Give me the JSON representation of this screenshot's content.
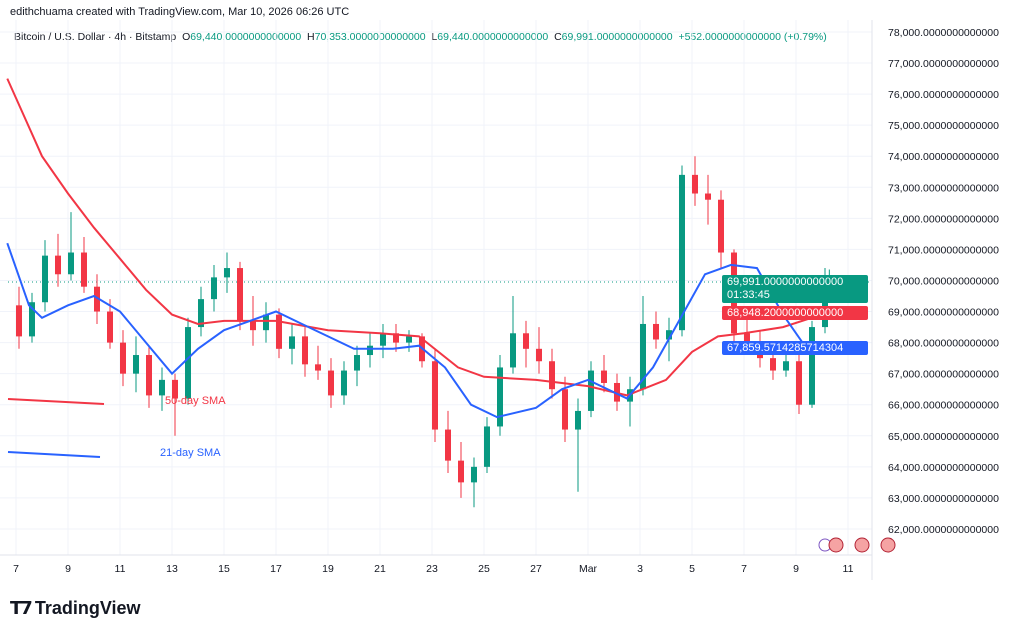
{
  "header": {
    "credit": "edithchuama created with TradingView.com, Mar 10, 2026 06:26 UTC",
    "symbol": "Bitcoin / U.S. Dollar · 4h · Bitstamp",
    "o_label": "O",
    "o": "69,440.0000000000000",
    "h_label": "H",
    "h": "70,353.0000000000000",
    "l_label": "L",
    "l": "69,440.0000000000000",
    "c_label": "C",
    "c": "69,991.0000000000000",
    "change": "+552.0000000000000 (+0.79%)"
  },
  "tags": {
    "last": "69,991.0000000000000",
    "countdown": "01:33:45",
    "sma50": "68,948.2000000000000",
    "sma21": "67,859.5714285714304"
  },
  "logo": {
    "text": "TradingView"
  },
  "colors": {
    "up": "#089981",
    "down": "#f23645",
    "sma50": "#f23645",
    "sma21": "#2962ff"
  },
  "chart_data": {
    "type": "candlestick",
    "ylim": [
      61500,
      78300
    ],
    "yticks": [
      "62,000.0000000000000",
      "63,000.0000000000000",
      "64,000.0000000000000",
      "65,000.0000000000000",
      "66,000.0000000000000",
      "67,000.0000000000000",
      "68,000.0000000000000",
      "69,000.0000000000000",
      "70,000.0000000000000",
      "71,000.0000000000000",
      "72,000.0000000000000",
      "73,000.0000000000000",
      "74,000.0000000000000",
      "75,000.0000000000000",
      "76,000.0000000000000",
      "77,000.0000000000000",
      "78,000.0000000000000"
    ],
    "xticks": [
      "7",
      "9",
      "11",
      "13",
      "15",
      "17",
      "19",
      "21",
      "23",
      "25",
      "27",
      "Mar",
      "3",
      "5",
      "7",
      "9",
      "11"
    ],
    "legend": [
      {
        "name": "50-day SMA",
        "color": "#f23645"
      },
      {
        "name": "21-day SMA",
        "color": "#2962ff"
      }
    ],
    "candles": [
      [
        "02-07 00",
        69200,
        69800,
        67800,
        68200
      ],
      [
        "02-07 12",
        68200,
        69600,
        68000,
        69300
      ],
      [
        "02-08 00",
        69300,
        71300,
        69000,
        70800
      ],
      [
        "02-08 12",
        70800,
        71500,
        69800,
        70200
      ],
      [
        "02-09 00",
        70200,
        72200,
        70000,
        70900
      ],
      [
        "02-09 12",
        70900,
        71400,
        69600,
        69800
      ],
      [
        "02-10 00",
        69800,
        70200,
        68600,
        69000
      ],
      [
        "02-10 12",
        69000,
        69400,
        67800,
        68000
      ],
      [
        "02-11 00",
        68000,
        68400,
        66600,
        67000
      ],
      [
        "02-11 12",
        67000,
        68200,
        66400,
        67600
      ],
      [
        "02-12 00",
        67600,
        67900,
        65900,
        66300
      ],
      [
        "02-12 12",
        66300,
        67200,
        65800,
        66800
      ],
      [
        "02-13 00",
        66800,
        67000,
        65000,
        66200
      ],
      [
        "02-13 12",
        66200,
        68800,
        66000,
        68500
      ],
      [
        "02-14 00",
        68500,
        69800,
        68200,
        69400
      ],
      [
        "02-14 12",
        69400,
        70500,
        69000,
        70100
      ],
      [
        "02-15 00",
        70100,
        70900,
        69600,
        70400
      ],
      [
        "02-15 12",
        70400,
        70600,
        68400,
        68700
      ],
      [
        "02-16 00",
        68700,
        69500,
        67900,
        68400
      ],
      [
        "02-16 12",
        68400,
        69300,
        68000,
        68900
      ],
      [
        "02-17 00",
        68900,
        69100,
        67500,
        67800
      ],
      [
        "02-17 12",
        67800,
        68600,
        67300,
        68200
      ],
      [
        "02-18 00",
        68200,
        68500,
        66900,
        67300
      ],
      [
        "02-18 12",
        67300,
        67900,
        66800,
        67100
      ],
      [
        "02-19 00",
        67100,
        67500,
        65900,
        66300
      ],
      [
        "02-19 12",
        66300,
        67400,
        66000,
        67100
      ],
      [
        "02-20 00",
        67100,
        67900,
        66600,
        67600
      ],
      [
        "02-20 12",
        67600,
        68300,
        67200,
        67900
      ],
      [
        "02-21 00",
        67900,
        68600,
        67500,
        68300
      ],
      [
        "02-21 12",
        68300,
        68600,
        67700,
        68000
      ],
      [
        "02-22 00",
        68000,
        68400,
        67700,
        68200
      ],
      [
        "02-22 12",
        68200,
        68300,
        67200,
        67400
      ],
      [
        "02-23 00",
        67400,
        67800,
        64800,
        65200
      ],
      [
        "02-23 12",
        65200,
        65800,
        63800,
        64200
      ],
      [
        "02-24 00",
        64200,
        64800,
        63000,
        63500
      ],
      [
        "02-24 12",
        63500,
        64300,
        62700,
        64000
      ],
      [
        "02-25 00",
        64000,
        65600,
        63800,
        65300
      ],
      [
        "02-25 12",
        65300,
        67600,
        65000,
        67200
      ],
      [
        "02-26 00",
        67200,
        69500,
        67000,
        68300
      ],
      [
        "02-26 12",
        68300,
        68700,
        67200,
        67800
      ],
      [
        "02-27 00",
        67800,
        68500,
        67000,
        67400
      ],
      [
        "02-27 12",
        67400,
        67800,
        66200,
        66500
      ],
      [
        "02-28 00",
        66500,
        66900,
        64800,
        65200
      ],
      [
        "02-28 12",
        65200,
        66200,
        63200,
        65800
      ],
      [
        "03-01 00",
        65800,
        67400,
        65600,
        67100
      ],
      [
        "03-01 12",
        67100,
        67600,
        66400,
        66700
      ],
      [
        "03-02 00",
        66700,
        67000,
        65800,
        66100
      ],
      [
        "03-02 12",
        66100,
        66900,
        65300,
        66500
      ],
      [
        "03-03 00",
        66500,
        69500,
        66300,
        68600
      ],
      [
        "03-03 12",
        68600,
        69000,
        67800,
        68100
      ],
      [
        "03-04 00",
        68100,
        68800,
        67400,
        68400
      ],
      [
        "03-04 12",
        68400,
        73700,
        68200,
        73400
      ],
      [
        "03-05 00",
        73400,
        74000,
        72400,
        72800
      ],
      [
        "03-05 12",
        72800,
        73400,
        71800,
        72600
      ],
      [
        "03-06 00",
        72600,
        72900,
        70400,
        70900
      ],
      [
        "03-06 12",
        70900,
        71000,
        67900,
        68300
      ],
      [
        "03-07 00",
        68300,
        68800,
        67600,
        68000
      ],
      [
        "03-07 12",
        68000,
        68400,
        67200,
        67500
      ],
      [
        "03-08 00",
        67500,
        68000,
        66800,
        67100
      ],
      [
        "03-08 12",
        67100,
        67900,
        66900,
        67400
      ],
      [
        "03-09 00",
        67400,
        67700,
        65700,
        66000
      ],
      [
        "03-09 12",
        66000,
        68700,
        65900,
        68500
      ],
      [
        "03-10 00",
        68500,
        70400,
        68300,
        69440
      ],
      [
        "03-10 04",
        69440,
        70353,
        69440,
        69991
      ]
    ],
    "sma50": [
      [
        "02-06 16",
        76500
      ],
      [
        "02-08 00",
        74000
      ],
      [
        "02-09 00",
        72800
      ],
      [
        "02-10 00",
        71700
      ],
      [
        "02-11 00",
        70700
      ],
      [
        "02-12 00",
        69700
      ],
      [
        "02-13 00",
        68900
      ],
      [
        "02-14 00",
        68600
      ],
      [
        "02-15 00",
        68700
      ],
      [
        "02-17 00",
        68700
      ],
      [
        "02-19 00",
        68400
      ],
      [
        "02-21 00",
        68300
      ],
      [
        "02-22 12",
        68200
      ],
      [
        "02-24 00",
        67200
      ],
      [
        "02-25 00",
        66900
      ],
      [
        "02-27 00",
        66800
      ],
      [
        "03-01 00",
        66600
      ],
      [
        "03-02 12",
        66300
      ],
      [
        "03-04 00",
        66800
      ],
      [
        "03-05 00",
        67700
      ],
      [
        "03-06 00",
        68200
      ],
      [
        "03-07 00",
        68300
      ],
      [
        "03-08 12",
        68500
      ],
      [
        "03-10 04",
        68948.2
      ]
    ],
    "sma21": [
      [
        "02-06 16",
        71200
      ],
      [
        "02-07 12",
        69200
      ],
      [
        "02-08 00",
        68800
      ],
      [
        "02-09 00",
        69200
      ],
      [
        "02-10 00",
        69500
      ],
      [
        "02-11 00",
        69000
      ],
      [
        "02-12 00",
        68000
      ],
      [
        "02-13 00",
        67000
      ],
      [
        "02-14 00",
        67800
      ],
      [
        "02-15 00",
        68400
      ],
      [
        "02-16 00",
        68700
      ],
      [
        "02-17 00",
        69000
      ],
      [
        "02-18 00",
        68600
      ],
      [
        "02-19 00",
        68200
      ],
      [
        "02-20 00",
        67800
      ],
      [
        "02-21 12",
        67800
      ],
      [
        "02-22 12",
        67900
      ],
      [
        "02-23 12",
        67200
      ],
      [
        "02-24 12",
        66000
      ],
      [
        "02-25 12",
        65600
      ],
      [
        "02-27 00",
        65900
      ],
      [
        "02-28 00",
        66500
      ],
      [
        "03-01 00",
        66800
      ],
      [
        "03-02 12",
        66200
      ],
      [
        "03-03 12",
        67200
      ],
      [
        "03-04 12",
        68700
      ],
      [
        "03-05 12",
        70200
      ],
      [
        "03-06 12",
        70500
      ],
      [
        "03-07 12",
        70400
      ],
      [
        "03-08 12",
        68900
      ],
      [
        "03-09 12",
        67700
      ],
      [
        "03-10 04",
        67860
      ]
    ]
  }
}
